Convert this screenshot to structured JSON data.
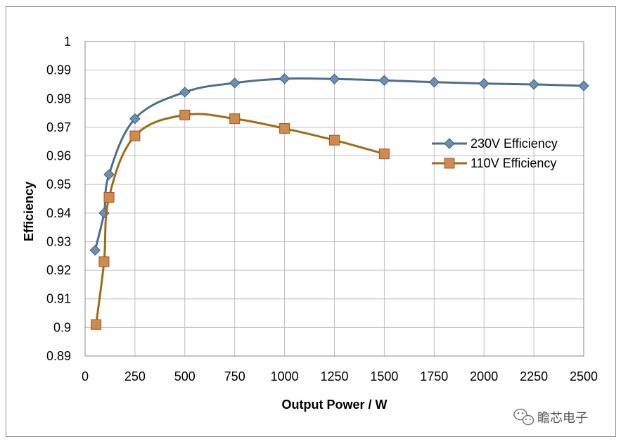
{
  "chart_data": {
    "type": "line",
    "title": "",
    "xlabel": "Output Power / W",
    "ylabel": "Efficiency",
    "xlim": [
      0,
      2500
    ],
    "ylim": [
      0.89,
      1
    ],
    "x_ticks": [
      0,
      250,
      500,
      750,
      1000,
      1250,
      1500,
      1750,
      2000,
      2250,
      2500
    ],
    "y_ticks": [
      0.89,
      0.9,
      0.91,
      0.92,
      0.93,
      0.94,
      0.95,
      0.96,
      0.97,
      0.98,
      0.99,
      1
    ],
    "x_tick_labels": [
      "0",
      "250",
      "500",
      "750",
      "1000",
      "1250",
      "1500",
      "1750",
      "2000",
      "2250",
      "2500"
    ],
    "y_tick_labels": [
      "0.89",
      "0.9",
      "0.91",
      "0.92",
      "0.93",
      "0.94",
      "0.95",
      "0.96",
      "0.97",
      "0.98",
      "0.99",
      "1"
    ],
    "grid": true,
    "legend_position": "right",
    "series": [
      {
        "name": "230V Efficiency",
        "color": "#4a6f8f",
        "marker": "diamond",
        "x": [
          50,
          95,
          120,
          250,
          500,
          750,
          1000,
          1250,
          1500,
          1750,
          2000,
          2250,
          2500
        ],
        "y": [
          0.927,
          0.94,
          0.9535,
          0.973,
          0.9823,
          0.9855,
          0.987,
          0.9869,
          0.9864,
          0.9858,
          0.9853,
          0.985,
          0.9845
        ]
      },
      {
        "name": "110V Efficiency",
        "color": "#a26a12",
        "marker": "square",
        "x": [
          55,
          95,
          120,
          250,
          500,
          750,
          1000,
          1250,
          1500
        ],
        "y": [
          0.901,
          0.923,
          0.9455,
          0.967,
          0.9743,
          0.973,
          0.9696,
          0.9655,
          0.9607
        ]
      }
    ]
  },
  "watermark": {
    "text": "瞻芯电子",
    "icon": "wechat-icon"
  }
}
